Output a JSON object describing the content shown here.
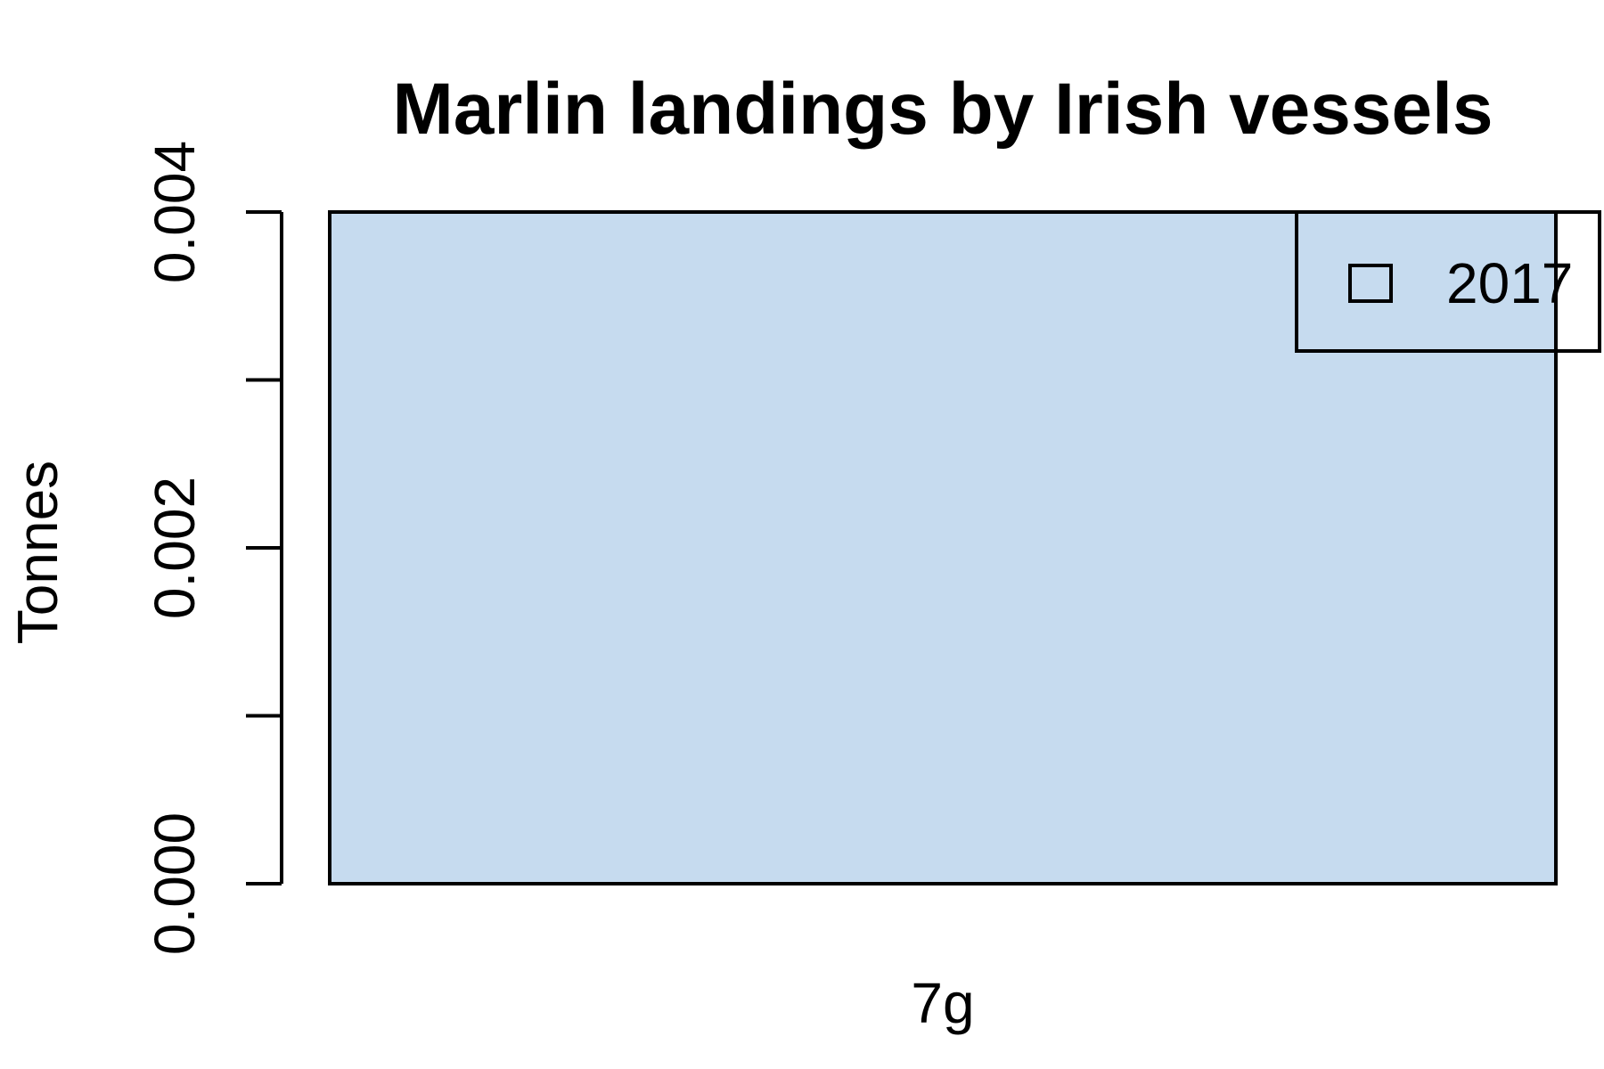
{
  "chart_data": {
    "type": "bar",
    "title": "Marlin landings by Irish vessels",
    "xlabel": "",
    "ylabel": "Tonnes",
    "categories": [
      "7g"
    ],
    "series": [
      {
        "name": "2017",
        "values": [
          0.004
        ],
        "color": "#c6dbef"
      }
    ],
    "ylim": [
      0,
      0.004
    ],
    "yticks": [
      0,
      0.001,
      0.002,
      0.003,
      0.004
    ],
    "ytick_labels": [
      "0.000",
      "0.002",
      "0.004"
    ],
    "legend": {
      "position": "top-right",
      "entries": [
        "2017"
      ]
    },
    "grid": false
  }
}
